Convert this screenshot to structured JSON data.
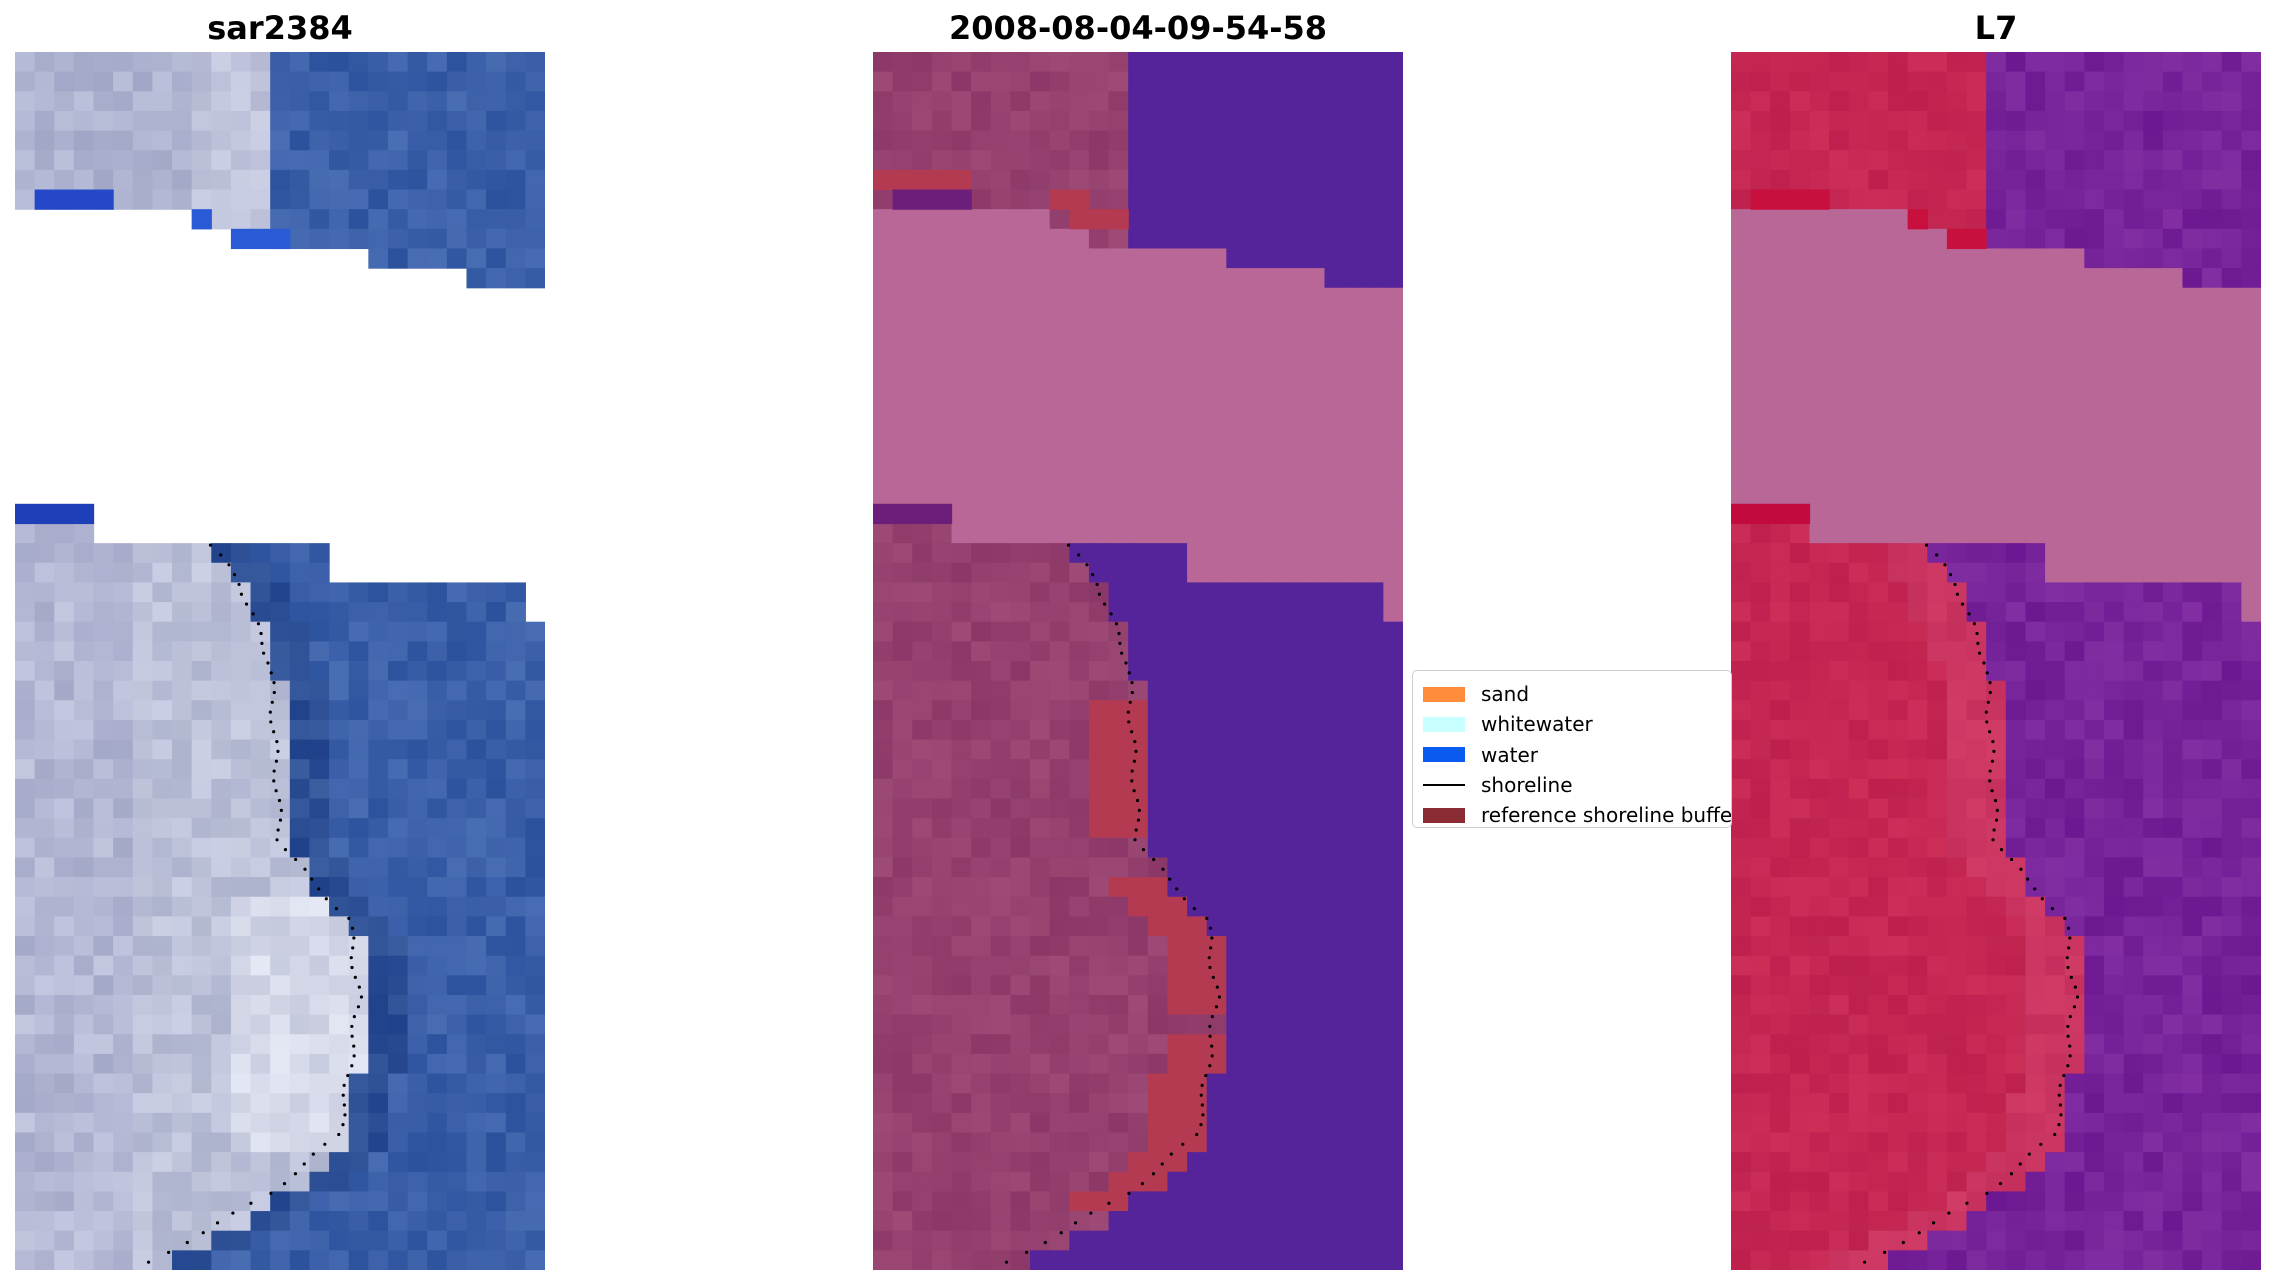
{
  "panels": [
    {
      "id": "sar",
      "title": "sar2384"
    },
    {
      "id": "class",
      "title": "2008-08-04-09-54-58"
    },
    {
      "id": "l7",
      "title": "L7"
    }
  ],
  "legend": {
    "items": [
      {
        "label": "sand",
        "kind": "patch",
        "color": "#ff8c3a"
      },
      {
        "label": "whitewater",
        "kind": "patch",
        "color": "#c8ffff"
      },
      {
        "label": "water",
        "kind": "patch",
        "color": "#0a5af0"
      },
      {
        "label": "shoreline",
        "kind": "line",
        "color": "#000000"
      },
      {
        "label": "reference shoreline buffer",
        "kind": "patch",
        "color": "#8b2b33"
      }
    ]
  },
  "colors": {
    "sar_land": "#aeb3d0",
    "sar_bright": "#e6e9f3",
    "sar_water": "#3a5fa8",
    "sar_water_dark": "#2c4f95",
    "class_land": "#94416f",
    "class_water": "#55239a",
    "class_buffer": "#b43a52",
    "cloud_mask": "#b86797",
    "l7_land": "#c42752",
    "l7_water": "#77239a",
    "shoreline": "#000000"
  }
}
